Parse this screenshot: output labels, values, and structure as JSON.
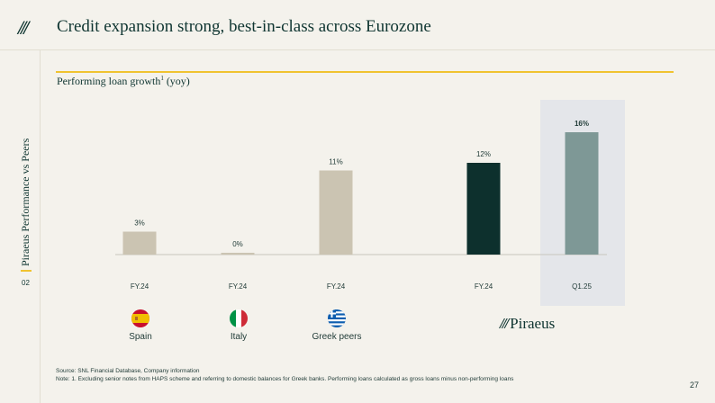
{
  "header": {
    "logo": "///",
    "title": "Credit expansion strong, best-in-class across Eurozone"
  },
  "sidebar": {
    "label": "Piraeus Performance vs Peers",
    "section_number": "02"
  },
  "subtitle": {
    "text": "Performing loan growth",
    "sup": "1",
    "suffix": "(yoy)"
  },
  "colors": {
    "peer": "#cbc4b2",
    "piraeus_fy": "#0d302d",
    "piraeus_q": "#7e9896",
    "highlight_bg": "#e4e6ea",
    "gold": "#f0c330"
  },
  "chart_data": {
    "type": "bar",
    "unit": "%",
    "ylim": [
      0,
      16
    ],
    "bars": [
      {
        "label": "FY.24",
        "value": 3,
        "value_label": "3%",
        "group": "Spain"
      },
      {
        "label": "FY.24",
        "value": 0,
        "value_label": "0%",
        "group": "Italy"
      },
      {
        "label": "FY.24",
        "value": 11,
        "value_label": "11%",
        "group": "Greek peers"
      },
      {
        "label": "FY.24",
        "value": 12,
        "value_label": "12%",
        "group": "Piraeus"
      },
      {
        "label": "Q1.25",
        "value": 16,
        "value_label": "16%",
        "group": "Piraeus",
        "highlighted": true
      }
    ]
  },
  "groups": [
    {
      "name": "Spain",
      "flag": "spain-flag-icon"
    },
    {
      "name": "Italy",
      "flag": "italy-flag-icon"
    },
    {
      "name": "Greek peers",
      "flag": "greece-flag-icon"
    }
  ],
  "brand": {
    "slashes": "///",
    "name": "Piraeus"
  },
  "footer": {
    "source": "Source: SNL Financial Database, Company information",
    "note": "Note: 1. Excluding senior notes from HAPS scheme and referring to domestic balances for Greek banks. Performing loans calculated as gross loans minus non-performing loans"
  },
  "page_number": "27"
}
